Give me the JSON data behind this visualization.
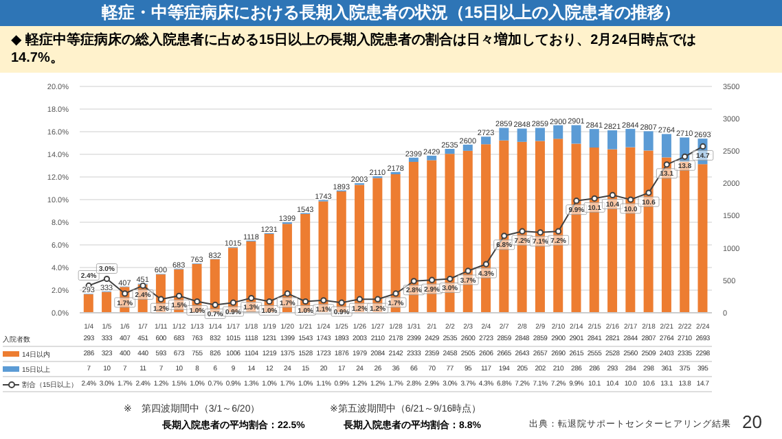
{
  "chart_data": {
    "type": "bar",
    "title": "軽症・中等症病床における長期入院患者の状況（15日以上の入院患者の推移）",
    "subtitle": "◆ 軽症中等症病床の総入院患者に占める15日以上の長期入院患者の割合は日々増加しており、2月24日時点では14.7%。",
    "categories": [
      "1/4",
      "1/5",
      "1/6",
      "1/7",
      "1/11",
      "1/12",
      "1/13",
      "1/14",
      "1/17",
      "1/18",
      "1/19",
      "1/20",
      "1/21",
      "1/24",
      "1/25",
      "1/26",
      "1/27",
      "1/28",
      "1/31",
      "2/1",
      "2/2",
      "2/3",
      "2/4",
      "2/7",
      "2/8",
      "2/9",
      "2/10",
      "2/14",
      "2/15",
      "2/16",
      "2/17",
      "2/18",
      "2/21",
      "2/22",
      "2/24"
    ],
    "series": [
      {
        "name": "14日以内",
        "axis": "y2",
        "color": "#ed7d31",
        "values": [
          286,
          323,
          400,
          440,
          593,
          673,
          755,
          826,
          1006,
          1104,
          1219,
          1375,
          1528,
          1723,
          1876,
          1979,
          2084,
          2142,
          2333,
          2359,
          2458,
          2505,
          2606,
          2665,
          2643,
          2657,
          2690,
          2615,
          2555,
          2528,
          2560,
          2509,
          2403,
          2335,
          2298
        ]
      },
      {
        "name": "15日以上",
        "axis": "y2",
        "color": "#5b9bd5",
        "values": [
          7,
          10,
          7,
          11,
          7,
          10,
          8,
          6,
          9,
          14,
          12,
          24,
          15,
          20,
          17,
          24,
          26,
          36,
          66,
          70,
          77,
          95,
          117,
          194,
          205,
          202,
          210,
          286,
          286,
          293,
          284,
          298,
          361,
          375,
          395
        ]
      },
      {
        "name": "割合（15日以上）",
        "type": "line",
        "axis": "y",
        "color": "#404040",
        "values": [
          2.4,
          3.0,
          1.7,
          2.4,
          1.2,
          1.5,
          1.0,
          0.7,
          0.9,
          1.3,
          1.0,
          1.7,
          1.0,
          1.1,
          0.9,
          1.2,
          1.2,
          1.7,
          2.8,
          2.9,
          3.0,
          3.7,
          4.3,
          6.8,
          7.2,
          7.1,
          7.2,
          9.9,
          10.1,
          10.4,
          10.0,
          10.6,
          13.1,
          13.8,
          14.7
        ],
        "value_labels": [
          "2.4%",
          "3.0%",
          "1.7%",
          "2.4%",
          "1.2%",
          "1.5%",
          "1.0%",
          "0.7%",
          "0.9%",
          "1.3%",
          "1.0%",
          "1.7%",
          "1.0%",
          "1.1%",
          "0.9%",
          "1.2%",
          "1.2%",
          "1.7%",
          "2.8%",
          "2.9%",
          "3.0%",
          "3.7%",
          "4.3%",
          "6.8%",
          "7.2%",
          "7.1%",
          "7.2%",
          "9.9%",
          "10.1",
          "10.4",
          "10.0",
          "10.6",
          "13.1",
          "13.8",
          "14.7"
        ]
      }
    ],
    "totals": [
      "293",
      "333",
      "407",
      "451",
      "600",
      "683",
      "763",
      "832",
      "1015",
      "1118",
      "1231",
      "1399",
      "1543",
      "1743",
      "1893",
      "2003",
      "2110",
      "2178",
      "2399",
      "2429",
      "2535",
      "2600",
      "2723",
      "2859",
      "2848",
      "2859",
      "2900",
      "2901",
      "2841",
      "2821",
      "2844",
      "2807",
      "2764",
      "2710",
      "2693"
    ],
    "stacked": true,
    "data_labels": true,
    "marker": "circle",
    "line_style": "solid",
    "grid": "y",
    "legend": "bottom",
    "ylim": [
      0,
      20
    ],
    "yticks": [
      {
        "value": 0,
        "label": "0.0%"
      },
      {
        "value": 2,
        "label": "2.0%"
      },
      {
        "value": 4,
        "label": "4.0%"
      },
      {
        "value": 6,
        "label": "6.0%"
      },
      {
        "value": 8,
        "label": "8.0%"
      },
      {
        "value": 10,
        "label": "10.0%"
      },
      {
        "value": 12,
        "label": "12.0%"
      },
      {
        "value": 14,
        "label": "14.0%"
      },
      {
        "value": 16,
        "label": "16.0%"
      },
      {
        "value": 18,
        "label": "18.0%"
      },
      {
        "value": 20,
        "label": "20.0%"
      }
    ],
    "y2lim": [
      0,
      3500
    ],
    "y2ticks": [
      0,
      500,
      1000,
      1500,
      2000,
      2500,
      3000,
      3500
    ],
    "annotations": [
      "入院者数",
      "※　第四波期間中（3/1～6/20）",
      "長期入院患者の平均割合：22.5%",
      "※第五波期間中（6/21～9/16時点）",
      "長期入院患者の平均割合：8.8%",
      "出典：転退院サポートセンターヒアリング結果",
      "20"
    ]
  }
}
